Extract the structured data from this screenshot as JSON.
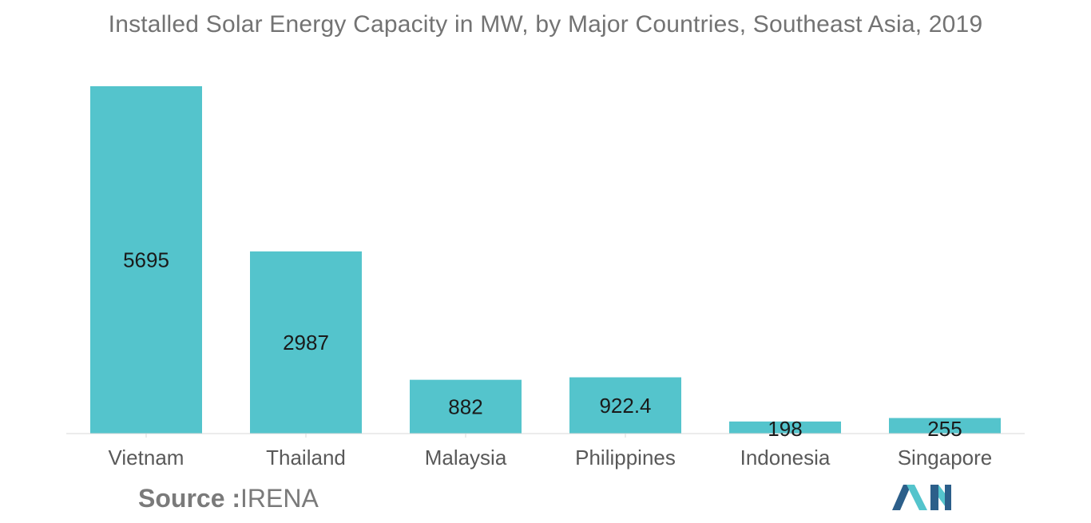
{
  "chart_data": {
    "type": "bar",
    "title": "Installed Solar Energy Capacity in MW, by Major Countries, Southeast Asia, 2019",
    "categories": [
      "Vietnam",
      "Thailand",
      "Malaysia",
      "Philippines",
      "Indonesia",
      "Singapore"
    ],
    "values": [
      5695,
      2987,
      882,
      922.4,
      198,
      255
    ],
    "value_labels": [
      "5695",
      "2987",
      "882",
      "922.4",
      "198",
      "255"
    ],
    "xlabel": "",
    "ylabel": "",
    "ylim": [
      0,
      5695
    ],
    "grid": false,
    "legend": "none",
    "bar_color": "#54c4cc"
  },
  "source": {
    "label": "Source :",
    "value": "IRENA"
  },
  "logo": {
    "icon": "mordor-intelligence-logo-icon",
    "colors": [
      "#2c5f8a",
      "#54c4cc"
    ]
  }
}
